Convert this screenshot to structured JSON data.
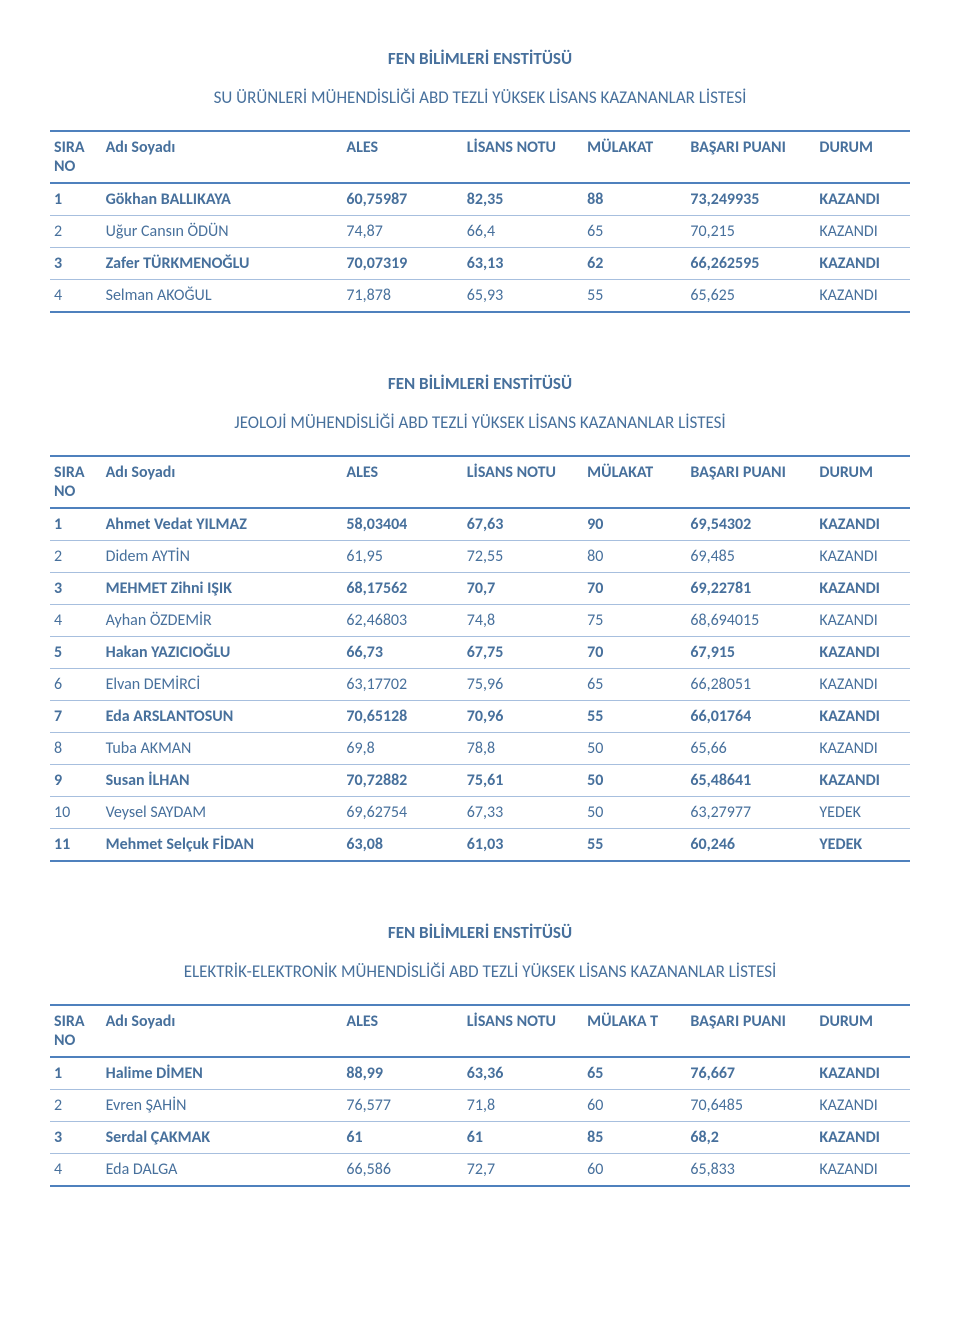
{
  "page": {
    "institute_title": "FEN BİLİMLERİ ENSTİTÜSÜ",
    "text_color": "#47709c",
    "border_thick_color": "#4f81bd",
    "border_thin_color": "#a7bfde",
    "background_color": "#ffffff",
    "title_fontsize_pt": 13,
    "body_fontsize_pt": 12
  },
  "tables": [
    {
      "subtitle": "SU ÜRÜNLERİ MÜHENDİSLİĞİ ABD TEZLİ YÜKSEK LİSANS KAZANANLAR LİSTESİ",
      "columns": [
        "SIRA NO",
        "Adı Soyadı",
        "ALES",
        "LİSANS NOTU",
        "MÜLAKAT",
        "BAŞARI PUANI",
        "DURUM"
      ],
      "rows": [
        {
          "bold": true,
          "cells": [
            "1",
            "Gökhan BALLIKAYA",
            "60,75987",
            "82,35",
            "88",
            "73,249935",
            "KAZANDI"
          ]
        },
        {
          "bold": false,
          "cells": [
            "2",
            "Uğur Cansın ÖDÜN",
            "74,87",
            "66,4",
            "65",
            "70,215",
            "KAZANDI"
          ]
        },
        {
          "bold": true,
          "cells": [
            "3",
            "Zafer TÜRKMENOĞLU",
            "70,07319",
            "63,13",
            "62",
            "66,262595",
            "KAZANDI"
          ]
        },
        {
          "bold": false,
          "cells": [
            "4",
            "Selman AKOĞUL",
            "71,878",
            "65,93",
            "55",
            "65,625",
            "KAZANDI"
          ]
        }
      ]
    },
    {
      "subtitle": "JEOLOJİ MÜHENDİSLİĞİ ABD TEZLİ YÜKSEK LİSANS KAZANANLAR LİSTESİ",
      "columns": [
        "SIRA NO",
        "Adı Soyadı",
        "ALES",
        "LİSANS NOTU",
        "MÜLAKAT",
        "BAŞARI PUANI",
        "DURUM"
      ],
      "rows": [
        {
          "bold": true,
          "cells": [
            "1",
            "Ahmet Vedat  YILMAZ",
            "58,03404",
            "67,63",
            "90",
            "69,54302",
            "KAZANDI"
          ]
        },
        {
          "bold": false,
          "cells": [
            "2",
            "Didem AYTİN",
            "61,95",
            "72,55",
            "80",
            "69,485",
            "KAZANDI"
          ]
        },
        {
          "bold": true,
          "cells": [
            "3",
            "MEHMET Zihni IŞIK",
            "68,17562",
            "70,7",
            "70",
            "69,22781",
            "KAZANDI"
          ]
        },
        {
          "bold": false,
          "cells": [
            "4",
            "Ayhan ÖZDEMİR",
            "62,46803",
            "74,8",
            "75",
            "68,694015",
            "KAZANDI"
          ]
        },
        {
          "bold": true,
          "cells": [
            "5",
            "Hakan YAZICIOĞLU",
            "66,73",
            "67,75",
            "70",
            "67,915",
            "KAZANDI"
          ]
        },
        {
          "bold": false,
          "cells": [
            "6",
            "Elvan DEMİRCİ",
            "63,17702",
            "75,96",
            "65",
            "66,28051",
            "KAZANDI"
          ]
        },
        {
          "bold": true,
          "cells": [
            "7",
            "Eda ARSLANTOSUN",
            "70,65128",
            "70,96",
            "55",
            "66,01764",
            "KAZANDI"
          ]
        },
        {
          "bold": false,
          "cells": [
            "8",
            "Tuba AKMAN",
            "69,8",
            "78,8",
            "50",
            "65,66",
            "KAZANDI"
          ]
        },
        {
          "bold": true,
          "cells": [
            "9",
            "Susan İLHAN",
            "70,72882",
            "75,61",
            "50",
            "65,48641",
            "KAZANDI"
          ]
        },
        {
          "bold": false,
          "cells": [
            "10",
            "Veysel SAYDAM",
            "69,62754",
            "67,33",
            "50",
            "63,27977",
            "YEDEK"
          ]
        },
        {
          "bold": true,
          "cells": [
            "11",
            "Mehmet Selçuk FİDAN",
            "63,08",
            "61,03",
            "55",
            "60,246",
            "YEDEK"
          ]
        }
      ]
    },
    {
      "subtitle": "ELEKTRİK-ELEKTRONİK MÜHENDİSLİĞİ ABD TEZLİ YÜKSEK LİSANS KAZANANLAR LİSTESİ",
      "columns": [
        "SIRA NO",
        "Adı Soyadı",
        "ALES",
        "LİSANS NOTU",
        "MÜLAKA T",
        "BAŞARI PUANI",
        "DURUM"
      ],
      "rows": [
        {
          "bold": true,
          "cells": [
            "1",
            "Halime DİMEN",
            "88,99",
            "63,36",
            "65",
            "76,667",
            "KAZANDI"
          ]
        },
        {
          "bold": false,
          "cells": [
            "2",
            "Evren ŞAHİN",
            "76,577",
            "71,8",
            "60",
            "70,6485",
            "KAZANDI"
          ]
        },
        {
          "bold": true,
          "cells": [
            "3",
            "Serdal ÇAKMAK",
            "61",
            "61",
            "85",
            "68,2",
            "KAZANDI"
          ]
        },
        {
          "bold": false,
          "cells": [
            "4",
            "Eda DALGA",
            "66,586",
            "72,7",
            "60",
            "65,833",
            "KAZANDI"
          ]
        }
      ]
    }
  ]
}
